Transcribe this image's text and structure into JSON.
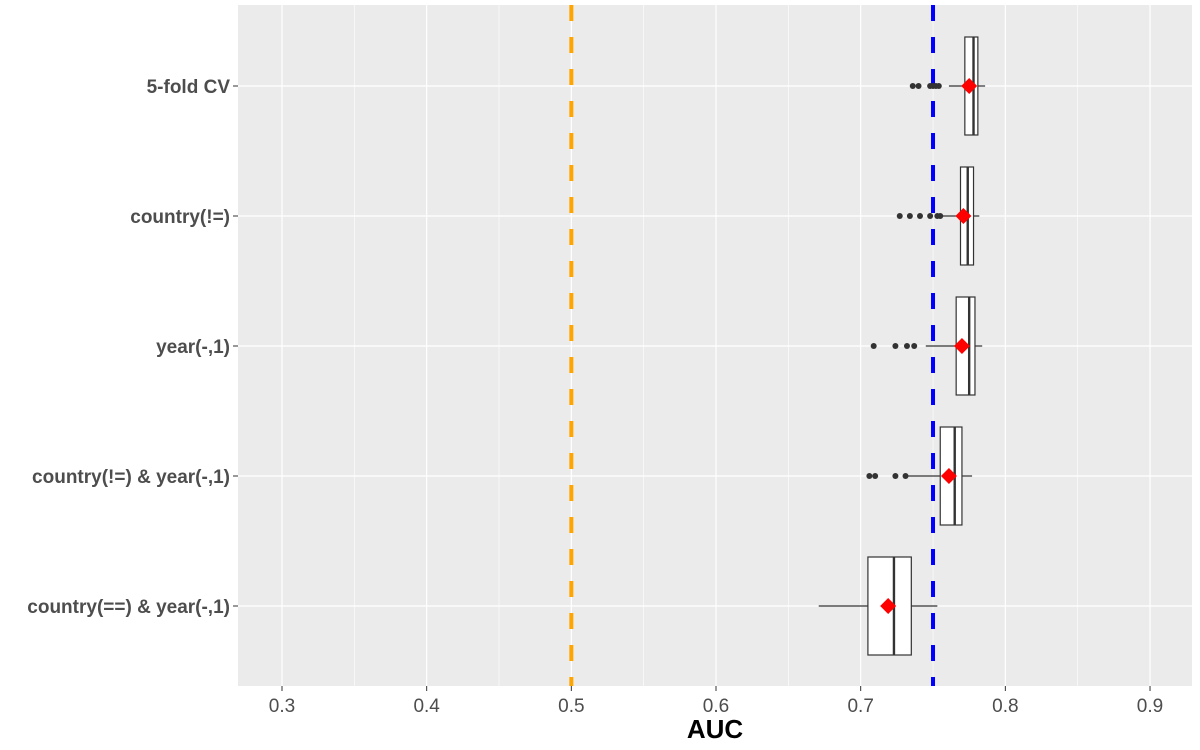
{
  "chart_data": {
    "type": "boxplot",
    "orientation": "horizontal",
    "xlabel": "AUC",
    "ylabel": "",
    "xlim": [
      0.27,
      0.93
    ],
    "xticks": [
      "0.3",
      "0.4",
      "0.5",
      "0.6",
      "0.7",
      "0.8",
      "0.9"
    ],
    "xtick_values": [
      0.3,
      0.4,
      0.5,
      0.6,
      0.7,
      0.8,
      0.9
    ],
    "grid": true,
    "reference_lines": [
      {
        "value": 0.5,
        "color": "#FFA500",
        "style": "dashed"
      },
      {
        "value": 0.75,
        "color": "#0000FF",
        "style": "dashed"
      }
    ],
    "mean_marker_color": "#FF0000",
    "categories": [
      "5-fold CV",
      "country(!=)",
      "year(-,1)",
      "country(!=) & year(-,1)",
      "country(==) & year(-,1)"
    ],
    "boxes": [
      {
        "whisker_low": 0.761,
        "q1": 0.772,
        "median": 0.778,
        "q3": 0.781,
        "whisker_high": 0.786,
        "mean": 0.775,
        "outliers": [
          0.736,
          0.74,
          0.748,
          0.75,
          0.752,
          0.754
        ]
      },
      {
        "whisker_low": 0.756,
        "q1": 0.769,
        "median": 0.774,
        "q3": 0.778,
        "whisker_high": 0.782,
        "mean": 0.771,
        "outliers": [
          0.727,
          0.734,
          0.741,
          0.748,
          0.753,
          0.755
        ]
      },
      {
        "whisker_low": 0.745,
        "q1": 0.766,
        "median": 0.775,
        "q3": 0.779,
        "whisker_high": 0.784,
        "mean": 0.77,
        "outliers": [
          0.709,
          0.724,
          0.732,
          0.737
        ]
      },
      {
        "whisker_low": 0.733,
        "q1": 0.755,
        "median": 0.765,
        "q3": 0.77,
        "whisker_high": 0.777,
        "mean": 0.761,
        "outliers": [
          0.706,
          0.71,
          0.724,
          0.731
        ]
      },
      {
        "whisker_low": 0.671,
        "q1": 0.705,
        "median": 0.723,
        "q3": 0.735,
        "whisker_high": 0.753,
        "mean": 0.719,
        "outliers": []
      }
    ]
  }
}
